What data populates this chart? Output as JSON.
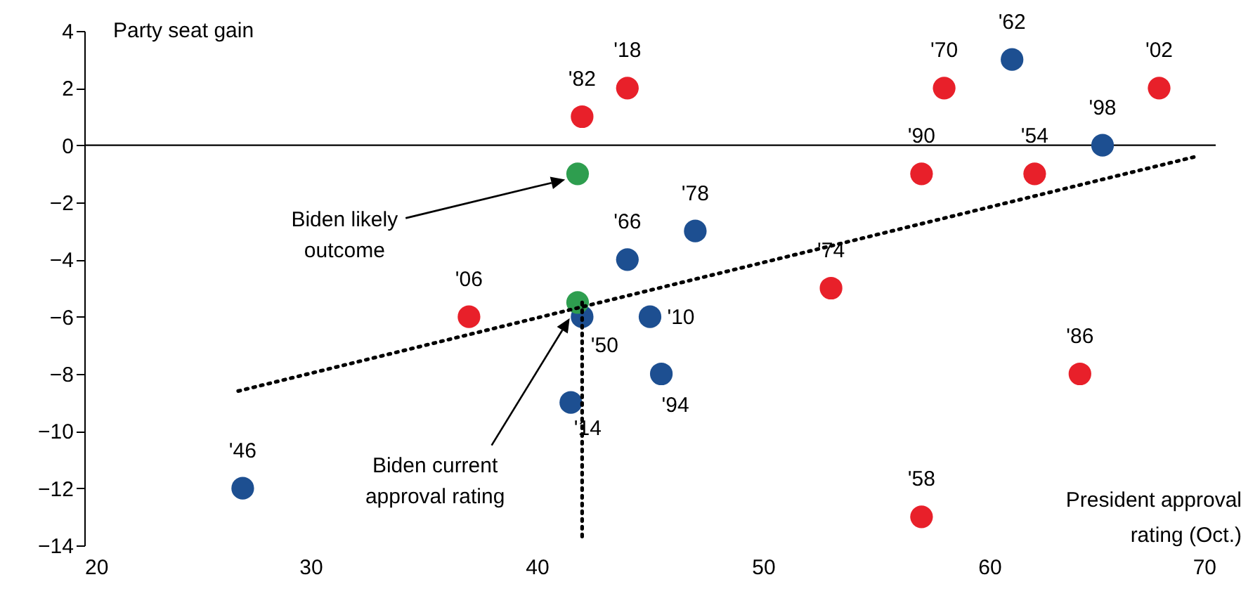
{
  "chart_data": {
    "type": "scatter",
    "xlabel": "President approval rating (Oct.)",
    "ylabel": "Party seat gain",
    "xlim": [
      20,
      70
    ],
    "xticks": [
      20,
      30,
      40,
      50,
      60,
      70
    ],
    "ylim": [
      -14,
      4
    ],
    "yticks": [
      -14,
      -12,
      -10,
      -8,
      -6,
      -4,
      -2,
      0,
      2,
      4
    ],
    "grid": false,
    "marker": "circle",
    "series": [
      {
        "color": "#1d4f91",
        "x": [
          27,
          44,
          47,
          42,
          45,
          41.5,
          45.5,
          61,
          65
        ],
        "values": [
          -12,
          -4,
          -3,
          -6,
          -6,
          -9,
          -8,
          3,
          0
        ]
      },
      {
        "color": "#e8202a",
        "x": [
          37,
          42,
          44,
          53,
          57,
          58,
          62,
          67.5,
          64,
          57
        ],
        "values": [
          -6,
          1,
          2,
          -5,
          -1,
          2,
          -1,
          2,
          -8,
          -13
        ]
      },
      {
        "color": "#2e9e4f",
        "x": [
          41.8,
          41.8
        ],
        "values": [
          -1,
          -5.5
        ]
      },
      {
        "type": "line",
        "color": "#000000",
        "line_style": "dotted",
        "marker": "none",
        "x": [
          26.8,
          69.1
        ],
        "values": [
          -8.6,
          -0.4
        ]
      },
      {
        "type": "line",
        "color": "#000000",
        "line_style": "dotted",
        "marker": "none",
        "x": [
          42,
          42
        ],
        "values": [
          -5.5,
          -13.7
        ]
      }
    ],
    "ref_lines": [
      {
        "axis": "y",
        "value": 0,
        "color": "#000000"
      }
    ],
    "annotations": [
      {
        "text": "'46",
        "x": 27,
        "y": -12
      },
      {
        "text": "'66",
        "x": 44,
        "y": -4
      },
      {
        "text": "'78",
        "x": 47,
        "y": -3
      },
      {
        "text": "'50",
        "x": 42,
        "y": -6
      },
      {
        "text": "'10",
        "x": 45,
        "y": -6
      },
      {
        "text": "'14",
        "x": 41.5,
        "y": -9
      },
      {
        "text": "'94",
        "x": 45.5,
        "y": -8
      },
      {
        "text": "'62",
        "x": 61,
        "y": 3
      },
      {
        "text": "'98",
        "x": 65,
        "y": 0
      },
      {
        "text": "'06",
        "x": 37,
        "y": -6
      },
      {
        "text": "'82",
        "x": 42,
        "y": 1
      },
      {
        "text": "'18",
        "x": 44,
        "y": 2
      },
      {
        "text": "'74",
        "x": 53,
        "y": -5
      },
      {
        "text": "'90",
        "x": 57,
        "y": -1
      },
      {
        "text": "'70",
        "x": 58,
        "y": 2
      },
      {
        "text": "'54",
        "x": 62,
        "y": -1
      },
      {
        "text": "'02",
        "x": 67.5,
        "y": 2
      },
      {
        "text": "'86",
        "x": 64,
        "y": -8
      },
      {
        "text": "'58",
        "x": 57,
        "y": -13
      },
      "Biden likely outcome",
      "Biden current approval rating"
    ]
  }
}
